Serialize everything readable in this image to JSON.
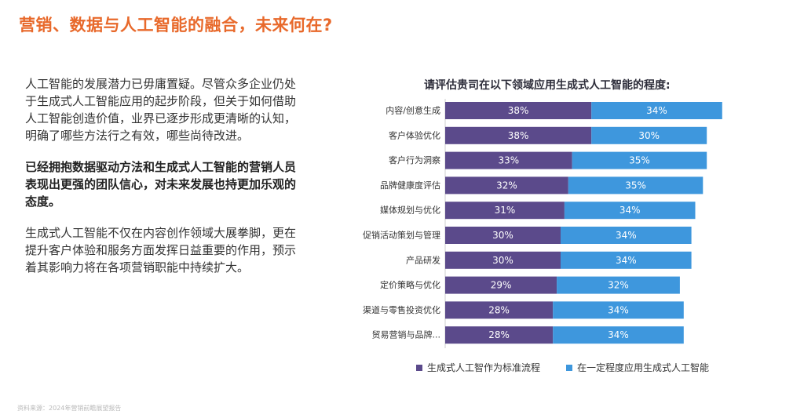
{
  "page": {
    "title": "营销、数据与人工智能的融合，未来何在?",
    "paragraphs": [
      "人工智能的发展潜力已毋庸置疑。尽管众多企业仍处于生成式人工智能应用的起步阶段，但关于如何借助人工智能创造价值，业界已逐步形成更清晰的认知，明确了哪些方法行之有效，哪些尚待改进。",
      "已经拥抱数据驱动方法和生成式人工智能的营销人员表现出更强的团队信心，对未来发展也持更加乐观的态度。",
      "生成式人工智能不仅在内容创作领域大展拳脚，更在提升客户体验和服务方面发挥日益重要的作用，预示着其影响力将在各项营销职能中持续扩大。"
    ],
    "source": "资料来源：2024年营销前瞻展望报告"
  },
  "colors": {
    "accent": "#e8692b",
    "series1": "#5b4a8b",
    "series2": "#3e97dd"
  },
  "chart_data": {
    "type": "bar",
    "orientation": "horizontal",
    "stacked": true,
    "title": "请评估贵司在以下领域应用生成式人工智能的程度:",
    "categories": [
      "内容/创意生成",
      "客户体验优化",
      "客户行为洞察",
      "品牌健康度评估",
      "媒体规划与优化",
      "促销活动策划与管理",
      "产品研发",
      "定价策略与优化",
      "渠道与零售投资优化",
      "贸易营销与品牌..."
    ],
    "series": [
      {
        "name": "生成式人工智作为标准流程",
        "values": [
          38,
          38,
          33,
          32,
          31,
          30,
          30,
          29,
          28,
          28
        ],
        "labels": [
          "38%",
          "38%",
          "33%",
          "32%",
          "31%",
          "30%",
          "30%",
          "29%",
          "28%",
          "28%"
        ]
      },
      {
        "name": "在一定程度应用生成式人工智能",
        "values": [
          34,
          30,
          35,
          35,
          34,
          34,
          34,
          32,
          34,
          34
        ],
        "labels": [
          "34%",
          "30%",
          "35%",
          "35%",
          "34%",
          "34%",
          "34%",
          "32%",
          "34%",
          "34%"
        ]
      }
    ],
    "xlim": [
      0,
      72
    ],
    "legend_position": "bottom"
  }
}
